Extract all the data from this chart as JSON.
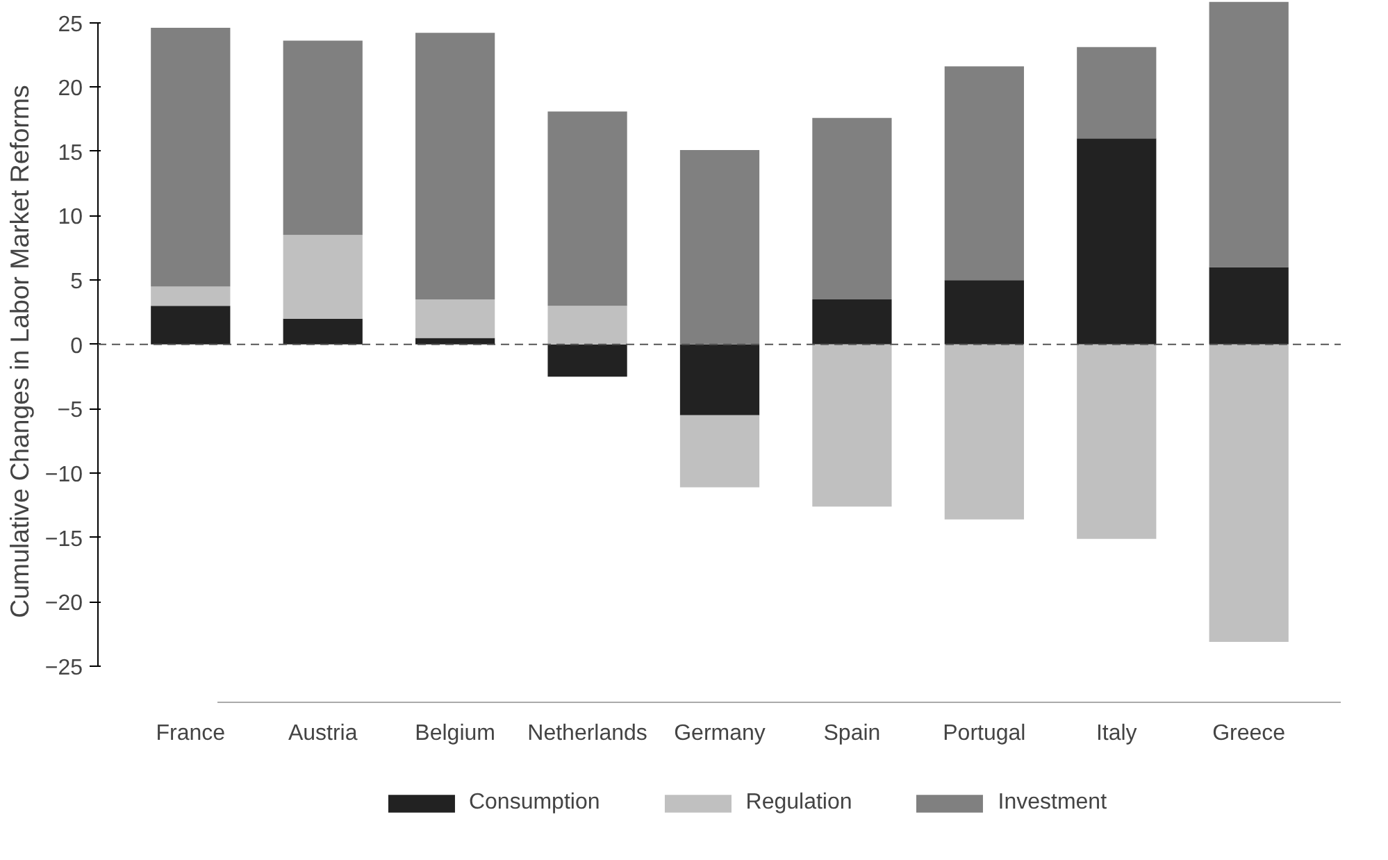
{
  "chart_data": {
    "type": "bar",
    "stacked": true,
    "ylabel": "Cumulative Changes in Labor Market Reforms",
    "categories": [
      "France",
      "Austria",
      "Belgium",
      "Netherlands",
      "Germany",
      "Spain",
      "Portugal",
      "Italy",
      "Greece"
    ],
    "series": [
      {
        "name": "Consumption",
        "color": "#222222",
        "values": [
          3,
          2,
          0.5,
          -2.5,
          -5.5,
          3.5,
          5,
          16,
          6
        ]
      },
      {
        "name": "Regulation",
        "color": "#c0c0c0",
        "values": [
          1.5,
          6.5,
          3,
          3,
          -5.6,
          -12.6,
          -13.6,
          -15.1,
          -23.1
        ]
      },
      {
        "name": "Investment",
        "color": "#808080",
        "values": [
          20.1,
          15.1,
          20.7,
          15.1,
          15.1,
          14.1,
          16.6,
          7.1,
          20.6
        ]
      }
    ],
    "ylim": [
      -27.8,
      26.7
    ],
    "yticks": [
      -25,
      -20,
      -15,
      -10,
      -5,
      0,
      5,
      10,
      15,
      20,
      25
    ],
    "ref_lines": [
      {
        "axis": "y",
        "value": 0,
        "color": "#555555",
        "line_style": "dashed"
      }
    ],
    "grid": false,
    "legend": "bottom"
  }
}
